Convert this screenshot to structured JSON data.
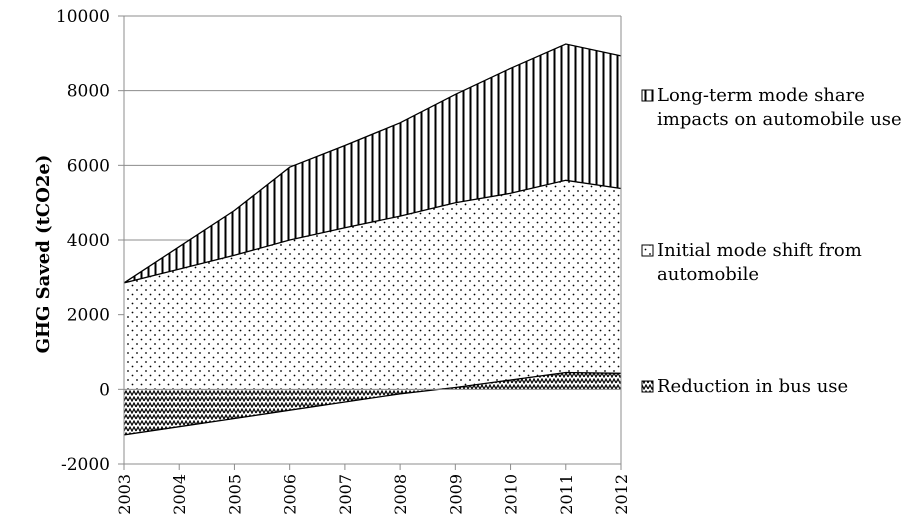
{
  "chart_data": {
    "type": "area",
    "ylabel": "GHG Saved (tCO2e)",
    "ylim": [
      -2000,
      10000
    ],
    "yticks": [
      "10000",
      "8000",
      "6000",
      "4000",
      "2000",
      "0",
      "-2000"
    ],
    "yticks_values": [
      10000,
      8000,
      6000,
      4000,
      2000,
      0,
      -2000
    ],
    "categories": [
      "2003",
      "2004",
      "2005",
      "2006",
      "2007",
      "2008",
      "2009",
      "2010",
      "2011",
      "2012"
    ],
    "grid": "horizontal",
    "legend_position": "right",
    "series": [
      {
        "name": "Reduction in bus use",
        "pattern": "zigzag",
        "values": [
          -1220,
          -1000,
          -780,
          -560,
          -340,
          -120,
          50,
          250,
          450,
          430
        ]
      },
      {
        "name": "Initial mode shift from automobile",
        "pattern": "dots",
        "values": [
          4070,
          4220,
          4370,
          4560,
          4670,
          4760,
          4950,
          5000,
          5150,
          4950
        ]
      },
      {
        "name": "Long-term mode share impacts on automobile use",
        "pattern": "vertical-lines",
        "values": [
          0,
          600,
          1200,
          1950,
          2200,
          2500,
          2900,
          3350,
          3650,
          3550
        ]
      }
    ],
    "legend": [
      {
        "lines": [
          "Long-term mode share",
          "impacts on automobile use"
        ],
        "pattern": "vertical-lines"
      },
      {
        "lines": [
          "Initial mode shift from",
          "automobile"
        ],
        "pattern": "dots"
      },
      {
        "lines": [
          "Reduction in bus use"
        ],
        "pattern": "zigzag"
      }
    ]
  }
}
